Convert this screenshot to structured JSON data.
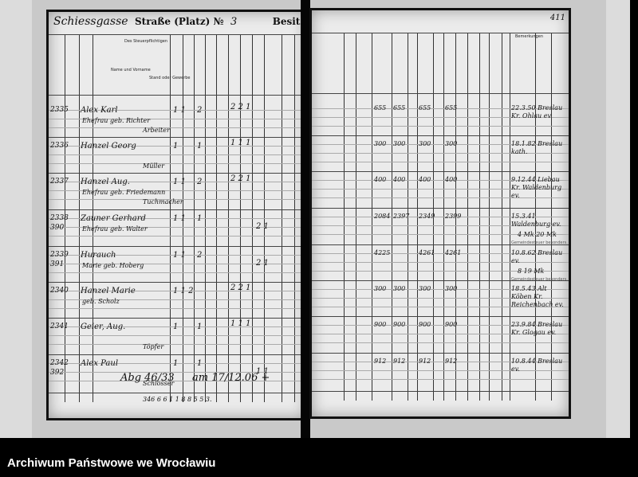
{
  "left_page": {
    "title_handwritten": "Schiessgasse",
    "title_printed": "Straße (Platz) №",
    "street_number": "3",
    "owner_label": "Besitzer:",
    "header_steuerpflichtigen": "Des Steuerpflichtigen",
    "header_name": "Name und Vorname",
    "header_stand": "Stand oder Gewerbe",
    "rows": [
      {
        "no": "2335",
        "sub": "",
        "name": "Alex Karl",
        "name2": "Ehefrau geb. Richter",
        "stand": "Arbeiter",
        "a": "1 1",
        "b": "2",
        "c": "2 2 1",
        "d": ""
      },
      {
        "no": "2336",
        "sub": "",
        "name": "Hanzel Georg",
        "name2": "",
        "stand": "Müller",
        "a": "1",
        "b": "1",
        "c": "1 1 1",
        "d": ""
      },
      {
        "no": "2337",
        "sub": "",
        "name": "Hanzel Aug.",
        "name2": "Ehefrau geb. Friedemann",
        "stand": "Tuchmacher",
        "a": "1 1",
        "b": "2",
        "c": "2 2 1",
        "d": ""
      },
      {
        "no": "2338",
        "sub": "390",
        "name": "Zauner Gerhard",
        "name2": "Ehefrau geb. Walter",
        "stand": "",
        "a": "1 1",
        "b": "1",
        "c": "",
        "d": "2 1"
      },
      {
        "no": "2339",
        "sub": "391",
        "name": "Hurauch",
        "name2": "Marie geb. Hoberg",
        "stand": "",
        "a": "1 1",
        "b": "2",
        "c": "",
        "d": "2 1"
      },
      {
        "no": "2340",
        "sub": "",
        "name": "Hanzel Marie",
        "name2": "geb. Scholz",
        "stand": "",
        "a": "1 1 2",
        "b": "",
        "c": "2 2 1",
        "d": ""
      },
      {
        "no": "2341",
        "sub": "",
        "name": "Geier, Aug.",
        "name2": "",
        "stand": "Töpfer",
        "a": "1",
        "b": "1",
        "c": "1 1 1",
        "d": ""
      },
      {
        "no": "2342",
        "sub": "392",
        "name": "Alex Paul",
        "name2": "",
        "stand": "Schlosser",
        "a": "1",
        "b": "1",
        "c": "",
        "d": "1 1"
      }
    ],
    "annotation": "Abg 46/33",
    "annotation2": "am 17/12.06 +",
    "totals": "346   6 6 1 1   8 8 5 5 3."
  },
  "right_page": {
    "page_number": "411",
    "header_bemerkungen": "Bemerkungen",
    "rows": [
      {
        "v1": "655",
        "v2": "655",
        "v3": "655",
        "v4": "655",
        "note": "22.3.50 Breslau Kr. Ohlau ev."
      },
      {
        "v1": "300",
        "v2": "300",
        "v3": "300",
        "v4": "300",
        "note": "18.1.82 Breslau kath."
      },
      {
        "v1": "400",
        "v2": "400",
        "v3": "400",
        "v4": "400",
        "note": "9.12.44 Liebau Kr. Waldenburg ev."
      },
      {
        "v1": "2084",
        "v2": "2397",
        "v3": "2349",
        "v4": "2399",
        "note": "15.3.41 Waldenburg ev."
      },
      {
        "v1": "4225",
        "v2": "",
        "v3": "4261",
        "v4": "4261",
        "note": "10.8.62 Breslau ev."
      },
      {
        "v1": "300",
        "v2": "300",
        "v3": "300",
        "v4": "300",
        "note": "18.5.43 Alt Köben Kr. Reichenbach ev."
      },
      {
        "v1": "900",
        "v2": "900",
        "v3": "900",
        "v4": "900",
        "note": "23.9.84 Breslau Kr. Glogau ev."
      },
      {
        "v1": "912",
        "v2": "912",
        "v3": "912",
        "v4": "912",
        "note": "10.8.44 Breslau ev."
      }
    ],
    "extra_row4": "4 Mk 20 Mk",
    "extra_row5": "8 19 Mk",
    "stamp_text": "Gemeindesteuer besonders."
  },
  "caption": "Archiwum Państwowe we Wrocławiu"
}
